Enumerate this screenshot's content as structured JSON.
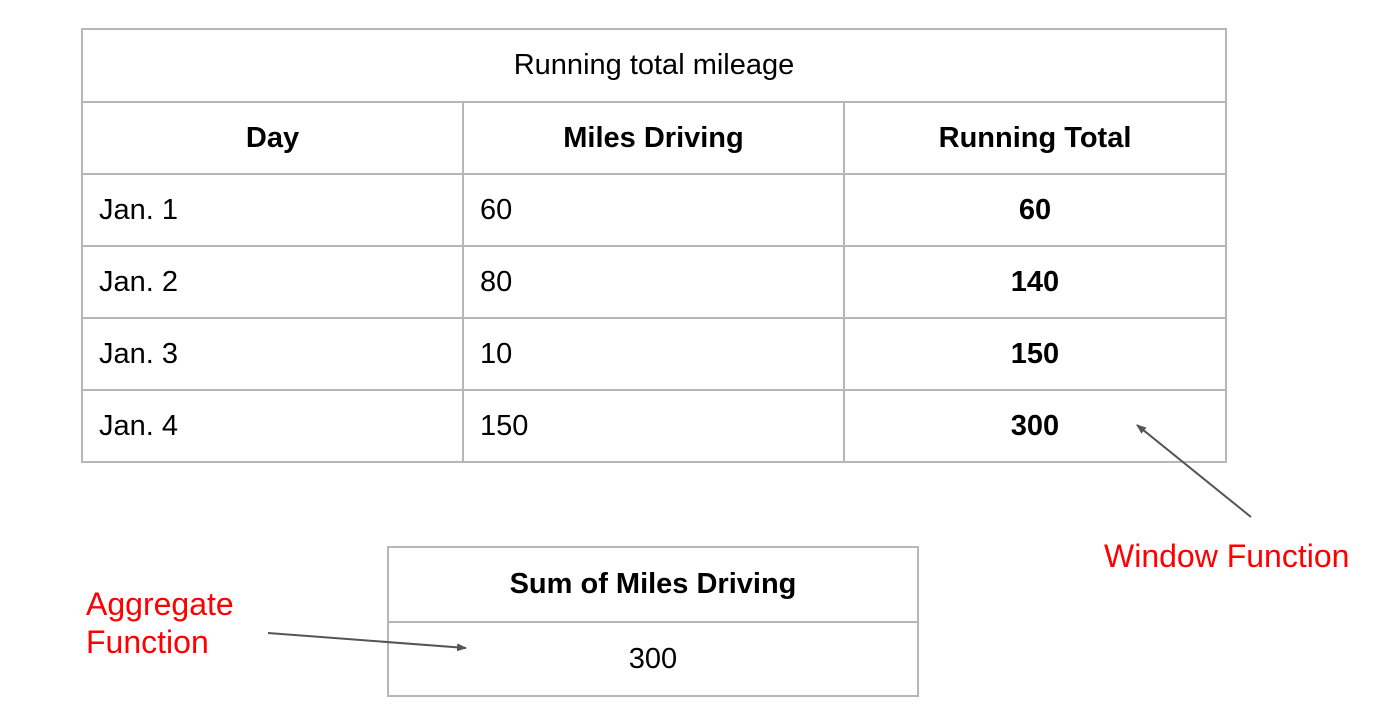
{
  "main_table": {
    "caption": "Running total mileage",
    "headers": [
      "Day",
      "Miles Driving",
      "Running Total"
    ],
    "rows": [
      {
        "day": "Jan. 1",
        "miles": "60",
        "running_total": "60"
      },
      {
        "day": "Jan. 2",
        "miles": "80",
        "running_total": "140"
      },
      {
        "day": "Jan. 3",
        "miles": "10",
        "running_total": "150"
      },
      {
        "day": "Jan. 4",
        "miles": "150",
        "running_total": "300"
      }
    ]
  },
  "sum_table": {
    "header": "Sum of Miles Driving",
    "value": "300"
  },
  "annotations": {
    "window_function": "Window Function",
    "aggregate_function_line1": "Aggregate",
    "aggregate_function_line2": "Function",
    "color": "#ff0000"
  },
  "colors": {
    "border": "#b7b7b7",
    "arrow": "#555555"
  }
}
